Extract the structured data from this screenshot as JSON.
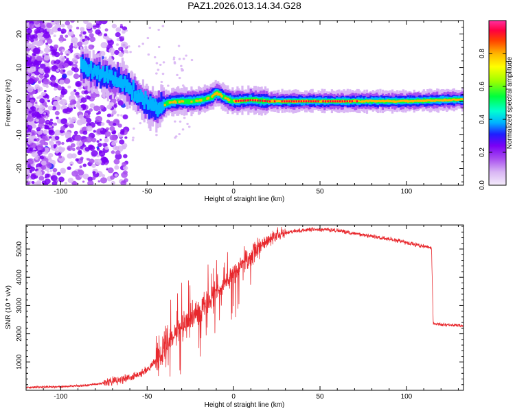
{
  "title": "PAZ1.2026.013.14.34.G28",
  "chart_data": [
    {
      "type": "heatmap",
      "name": "spectrogram",
      "xlabel": "Height of straight line (km)",
      "ylabel": "Frequency (Hz)",
      "xlim": [
        -120,
        133
      ],
      "ylim": [
        -25,
        24
      ],
      "xticks": [
        -100,
        -50,
        0,
        50,
        100
      ],
      "yticks": [
        -20,
        -10,
        0,
        10,
        20
      ],
      "colorbar": {
        "label": "Normalized spectral amplitude",
        "range": [
          0,
          1
        ],
        "ticks": [
          "0.0",
          "0.2",
          "0.4",
          "0.6",
          "0.8"
        ],
        "tick_values": [
          0,
          0.2,
          0.4,
          0.6,
          0.8
        ],
        "colors": [
          "#f4ecfb",
          "#d9b6f4",
          "#a94ff0",
          "#7a00f5",
          "#1e1eff",
          "#00b4ff",
          "#00ffd2",
          "#00ff3c",
          "#9bff00",
          "#ffff00",
          "#ffb400",
          "#ff4000",
          "#ff0040",
          "#ff2fa0"
        ]
      },
      "ridge": {
        "x": [
          -120,
          -100,
          -85,
          -75,
          -68,
          -62,
          -57,
          -52,
          -48,
          -45,
          -42,
          -38,
          -32,
          -25,
          -20,
          -15,
          -12,
          -10,
          -8,
          -5,
          -2,
          0,
          5,
          10,
          20,
          30,
          60,
          100,
          133
        ],
        "y": [
          20,
          14,
          10,
          7.5,
          6.5,
          5,
          2.5,
          0,
          -1.5,
          -2.5,
          -1.5,
          -0.5,
          0,
          0,
          0.2,
          0.8,
          1.5,
          2.5,
          2,
          1,
          0.3,
          0,
          0.2,
          0.4,
          0,
          0,
          0,
          0,
          0.5
        ]
      }
    },
    {
      "type": "line",
      "name": "snr",
      "xlabel": "Height of straight line (km)",
      "ylabel": "SNR (10 * v/v)",
      "xlim": [
        -120,
        133
      ],
      "ylim": [
        0,
        5850
      ],
      "xticks": [
        -100,
        -50,
        0,
        50,
        100
      ],
      "yticks": [
        1000,
        2000,
        3000,
        4000,
        5000
      ],
      "color": "#e8282d",
      "profile": {
        "x": [
          -120,
          -100,
          -85,
          -75,
          -65,
          -55,
          -48,
          -44,
          -40,
          -35,
          -30,
          -25,
          -20,
          -15,
          -10,
          -5,
          0,
          5,
          10,
          15,
          20,
          25,
          30,
          40,
          50,
          60,
          70,
          80,
          90,
          100,
          108,
          112,
          114.5,
          115.5,
          120,
          133
        ],
        "y": [
          100,
          130,
          170,
          260,
          380,
          520,
          800,
          1150,
          1500,
          1900,
          2200,
          2550,
          2800,
          3100,
          3450,
          3800,
          4150,
          4450,
          4750,
          5050,
          5300,
          5480,
          5580,
          5670,
          5700,
          5650,
          5560,
          5450,
          5350,
          5230,
          5120,
          5080,
          5050,
          2360,
          2330,
          2290
        ]
      }
    }
  ]
}
